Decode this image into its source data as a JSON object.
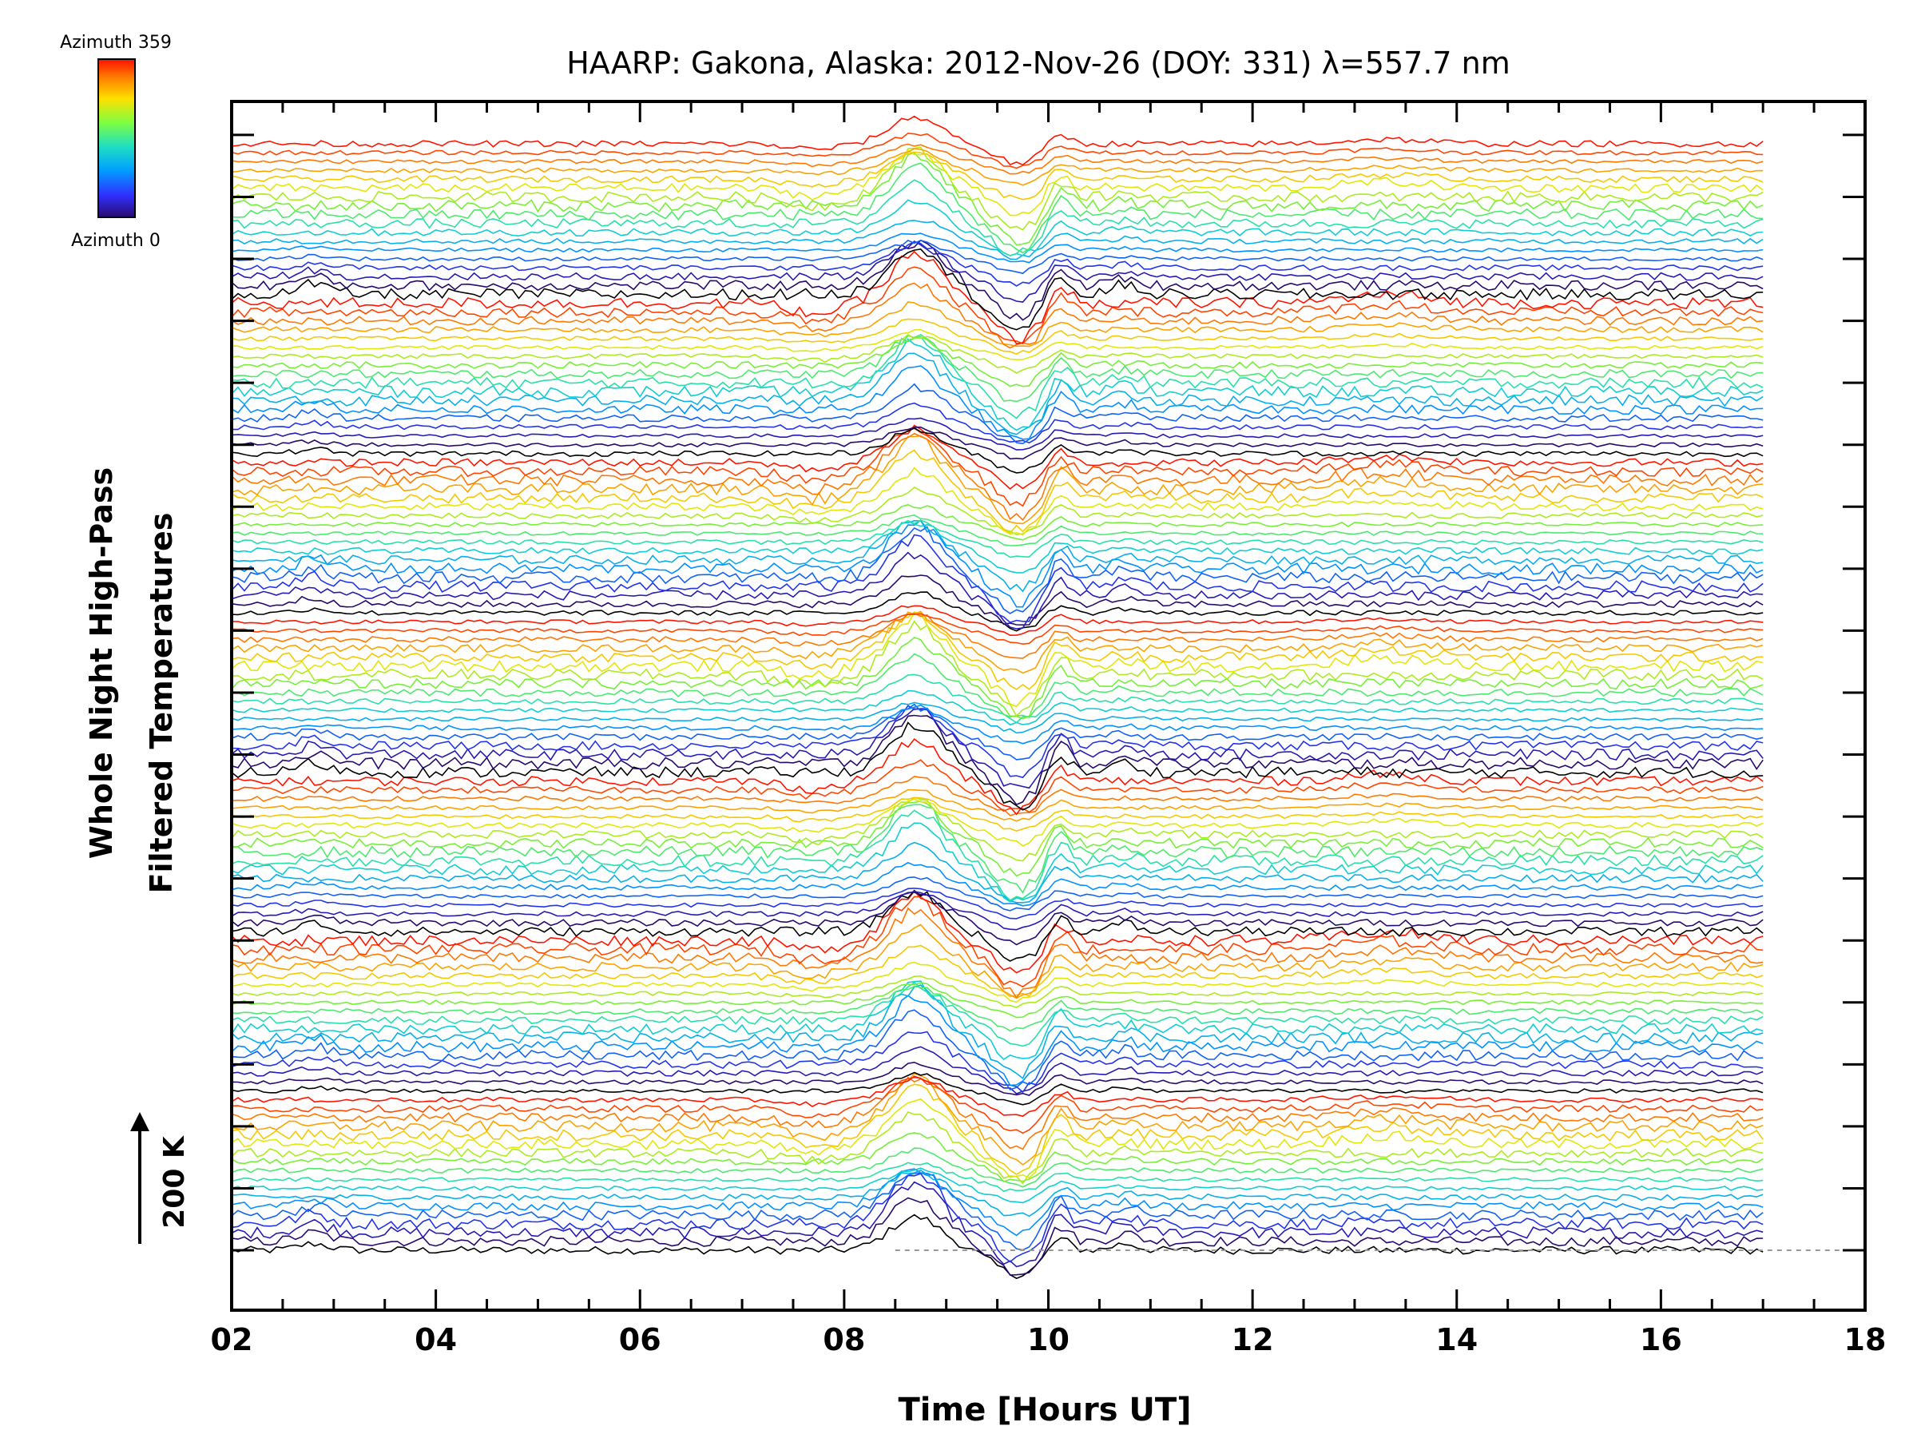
{
  "chart_data": {
    "type": "line",
    "title": "HAARP: Gakona,  Alaska: 2012-Nov-26 (DOY: 331) λ=557.7 nm",
    "xlabel": "Time [Hours UT]",
    "ylabel_line1": "Whole Night High-Pass",
    "ylabel_line2": "Filtered Temperatures",
    "scale_label": "200 K",
    "scale_value_K": 200,
    "colorbar": {
      "top_label": "Azimuth 359",
      "bottom_label": "Azimuth 0",
      "colormap": "rainbow",
      "min": 0,
      "max": 359
    },
    "x_range": [
      2,
      18
    ],
    "x_ticks": [
      "02",
      "04",
      "06",
      "08",
      "10",
      "12",
      "14",
      "16",
      "18"
    ],
    "data_x_range": [
      2,
      17
    ],
    "series_count": 126,
    "series_per_cycle": 18,
    "y_range": [
      0,
      1000
    ],
    "grid": false,
    "baseline": {
      "y": 0,
      "style": "dashed",
      "color": "#999999",
      "x_range": [
        8.5,
        18
      ]
    },
    "events": [
      {
        "label": "",
        "x": 8.7,
        "feature": "peak"
      },
      {
        "label": "",
        "x": 9.7,
        "feature": "trough"
      },
      {
        "label": "",
        "x": 10.1,
        "feature": "peak"
      }
    ]
  }
}
